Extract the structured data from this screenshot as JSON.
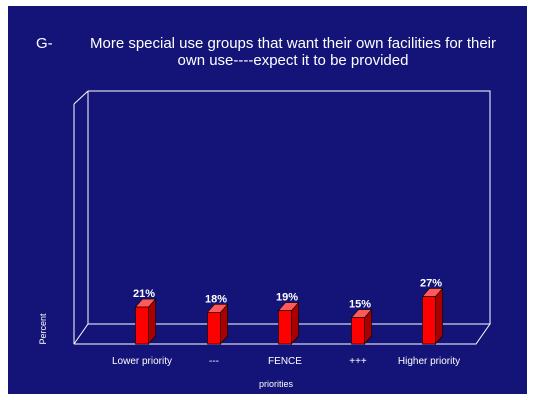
{
  "slide": {
    "title_prefix": "G-",
    "title": "More special use groups that want their own facilities for their\nown use----expect it to be provided",
    "background_color": "#141478"
  },
  "chart_data": {
    "type": "bar",
    "title": "More special use groups that want their own facilities for their own use----expect it to be provided",
    "categories": [
      "Lower priority",
      "---",
      "FENCE",
      "+++",
      "Higher priority"
    ],
    "values": [
      21,
      18,
      19,
      15,
      27
    ],
    "value_labels": [
      "21%",
      "18%",
      "19%",
      "15%",
      "27%"
    ],
    "xlabel": "priorities",
    "ylabel": "Percent",
    "ylim": [
      0,
      100
    ],
    "grid": false,
    "legend": "none",
    "bar_color": "#ff0000",
    "bar_side_color": "#aa0000",
    "bar_top_color": "#ff5a5a",
    "style": "3d"
  }
}
